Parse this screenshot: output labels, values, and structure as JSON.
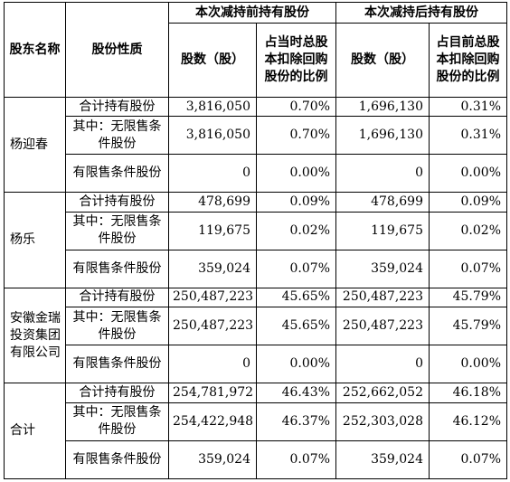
{
  "headers": {
    "shareholder": "股东名称",
    "nature": "股份性质",
    "before_group": "本次减持前持有股份",
    "after_group": "本次减持后持有股份",
    "shares": "股数（股）",
    "before_ratio": "占当时总股本扣除回购股份的比例",
    "after_ratio": "占目前总股本扣除回购股份的比例"
  },
  "groups": [
    {
      "name": "杨迎春",
      "rows": [
        {
          "type": "合计持有股份",
          "before_shares": "3,816,050",
          "before_ratio": "0.70%",
          "after_shares": "1,696,130",
          "after_ratio": "0.31%"
        },
        {
          "type": "其中：无限售条件股份",
          "before_shares": "3,816,050",
          "before_ratio": "0.70%",
          "after_shares": "1,696,130",
          "after_ratio": "0.31%"
        },
        {
          "type": "有限售条件股份",
          "before_shares": "0",
          "before_ratio": "0.00%",
          "after_shares": "0",
          "after_ratio": "0.00%"
        }
      ]
    },
    {
      "name": "杨乐",
      "rows": [
        {
          "type": "合计持有股份",
          "before_shares": "478,699",
          "before_ratio": "0.09%",
          "after_shares": "478,699",
          "after_ratio": "0.09%"
        },
        {
          "type": "其中：无限售条件股份",
          "before_shares": "119,675",
          "before_ratio": "0.02%",
          "after_shares": "119,675",
          "after_ratio": "0.02%"
        },
        {
          "type": "有限售条件股份",
          "before_shares": "359,024",
          "before_ratio": "0.07%",
          "after_shares": "359,024",
          "after_ratio": "0.07%"
        }
      ]
    },
    {
      "name": "安徽金瑞投资集团有限公司",
      "rows": [
        {
          "type": "合计持有股份",
          "before_shares": "250,487,223",
          "before_ratio": "45.65%",
          "after_shares": "250,487,223",
          "after_ratio": "45.79%"
        },
        {
          "type": "其中：无限售条件股份",
          "before_shares": "250,487,223",
          "before_ratio": "45.65%",
          "after_shares": "250,487,223",
          "after_ratio": "45.79%"
        },
        {
          "type": "有限售条件股份",
          "before_shares": "0",
          "before_ratio": "0.00%",
          "after_shares": "0",
          "after_ratio": "0.00%"
        }
      ]
    },
    {
      "name": "合计",
      "rows": [
        {
          "type": "合计持有股份",
          "before_shares": "254,781,972",
          "before_ratio": "46.43%",
          "after_shares": "252,662,052",
          "after_ratio": "46.18%"
        },
        {
          "type": "其中：无限售条件股份",
          "before_shares": "254,422,948",
          "before_ratio": "46.37%",
          "after_shares": "252,303,028",
          "after_ratio": "46.12%"
        },
        {
          "type": "有限售条件股份",
          "before_shares": "359,024",
          "before_ratio": "0.07%",
          "after_shares": "359,024",
          "after_ratio": "0.07%"
        }
      ]
    }
  ]
}
